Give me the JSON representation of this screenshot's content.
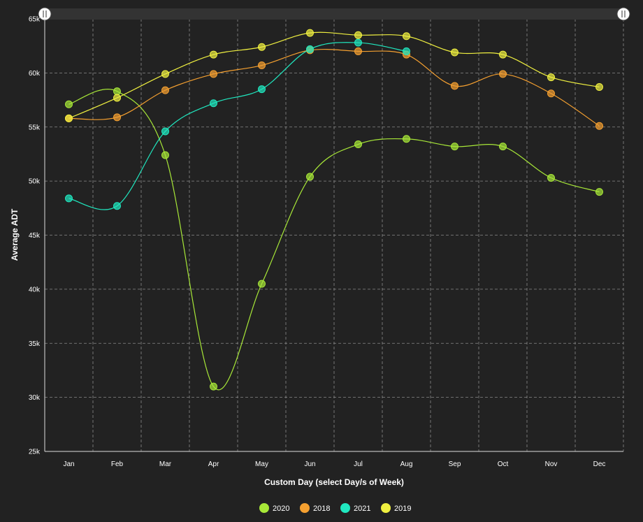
{
  "chart_data": {
    "type": "line",
    "xlabel": "Custom Day (select Day/s of Week)",
    "ylabel": "Average ADT",
    "categories": [
      "Jan",
      "Feb",
      "Mar",
      "Apr",
      "May",
      "Jun",
      "Jul",
      "Aug",
      "Sep",
      "Oct",
      "Nov",
      "Dec"
    ],
    "ylim": [
      25000,
      65000
    ],
    "yticks": [
      25000,
      30000,
      35000,
      40000,
      45000,
      50000,
      55000,
      60000,
      65000
    ],
    "ytick_labels": [
      "25k",
      "30k",
      "35k",
      "40k",
      "45k",
      "50k",
      "55k",
      "60k",
      "65k"
    ],
    "grid": true,
    "legend_position": "bottom",
    "series": [
      {
        "name": "2020",
        "color": "#a8e838",
        "values": [
          57100,
          58300,
          52400,
          31000,
          40500,
          50400,
          53400,
          53900,
          53200,
          53200,
          50300,
          49000
        ]
      },
      {
        "name": "2018",
        "color": "#f5a030",
        "values": [
          55800,
          55900,
          58400,
          59900,
          60700,
          62100,
          62000,
          61700,
          58800,
          59900,
          58100,
          55100
        ]
      },
      {
        "name": "2021",
        "color": "#20e8c0",
        "values": [
          48400,
          47700,
          54600,
          57200,
          58500,
          62200,
          62800,
          62000,
          null,
          null,
          null,
          null
        ]
      },
      {
        "name": "2019",
        "color": "#f0f040",
        "values": [
          55800,
          57700,
          59900,
          61700,
          62400,
          63700,
          63500,
          63400,
          61900,
          61700,
          59600,
          58700
        ]
      }
    ]
  }
}
